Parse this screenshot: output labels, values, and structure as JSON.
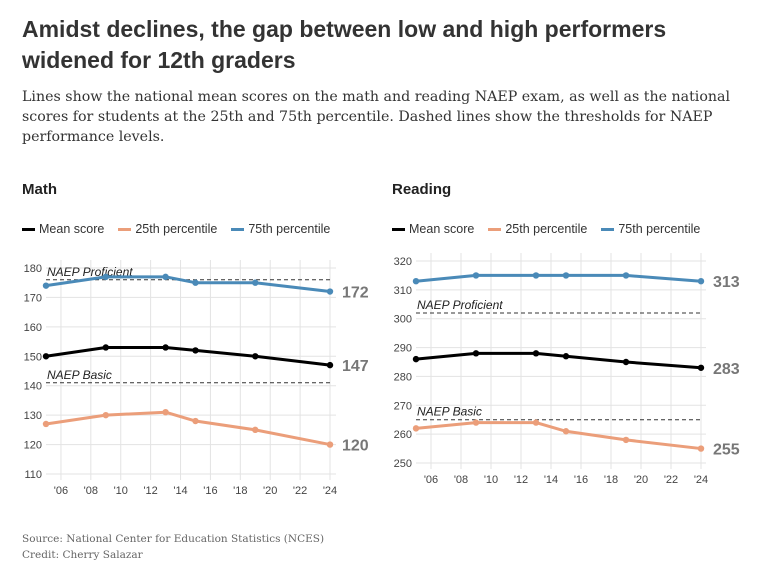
{
  "title": "Amidst declines, the gap between low and high performers widened for 12th graders",
  "description": "Lines show the national mean scores on the math and reading NAEP exam, as well as the national scores for students at the 25th and 75th percentile. Dashed lines show the thresholds for NAEP performance levels.",
  "source": "Source: National Center for Education Statistics (NCES)",
  "credit": "Credit: Cherry Salazar",
  "chart_data": [
    {
      "type": "line",
      "title": "Math",
      "x": [
        2005,
        2009,
        2013,
        2015,
        2019,
        2024
      ],
      "xticks": [
        "'06",
        "'08",
        "'10",
        "'12",
        "'14",
        "'16",
        "'18",
        "'20",
        "'22",
        "'24"
      ],
      "ylim": [
        110,
        180
      ],
      "yticks": [
        110,
        120,
        130,
        140,
        150,
        160,
        170,
        180
      ],
      "grid": true,
      "legend": "top",
      "series": [
        {
          "name": "Mean score",
          "color": "#000000",
          "values": [
            150,
            153,
            153,
            152,
            150,
            147
          ],
          "end_label": "147"
        },
        {
          "name": "25th percentile",
          "color": "#eb9e7a",
          "values": [
            127,
            130,
            131,
            128,
            125,
            120
          ],
          "end_label": "120"
        },
        {
          "name": "75th percentile",
          "color": "#4a8ab8",
          "values": [
            174,
            177,
            177,
            175,
            175,
            172
          ],
          "end_label": "172"
        }
      ],
      "thresholds": [
        {
          "label": "NAEP Proficient",
          "value": 176
        },
        {
          "label": "NAEP Basic",
          "value": 141
        }
      ]
    },
    {
      "type": "line",
      "title": "Reading",
      "x": [
        2005,
        2009,
        2013,
        2015,
        2019,
        2024
      ],
      "xticks": [
        "'06",
        "'08",
        "'10",
        "'12",
        "'14",
        "'16",
        "'18",
        "'20",
        "'22",
        "'24"
      ],
      "ylim": [
        250,
        320
      ],
      "yticks": [
        250,
        260,
        270,
        280,
        290,
        300,
        310,
        320
      ],
      "grid": true,
      "legend": "top",
      "series": [
        {
          "name": "Mean score",
          "color": "#000000",
          "values": [
            286,
            288,
            288,
            287,
            285,
            283
          ],
          "end_label": "283"
        },
        {
          "name": "25th percentile",
          "color": "#eb9e7a",
          "values": [
            262,
            264,
            264,
            261,
            258,
            255
          ],
          "end_label": "255"
        },
        {
          "name": "75th percentile",
          "color": "#4a8ab8",
          "values": [
            313,
            315,
            315,
            315,
            315,
            313
          ],
          "end_label": "313"
        }
      ],
      "thresholds": [
        {
          "label": "NAEP Proficient",
          "value": 302
        },
        {
          "label": "NAEP Basic",
          "value": 265
        }
      ]
    }
  ]
}
